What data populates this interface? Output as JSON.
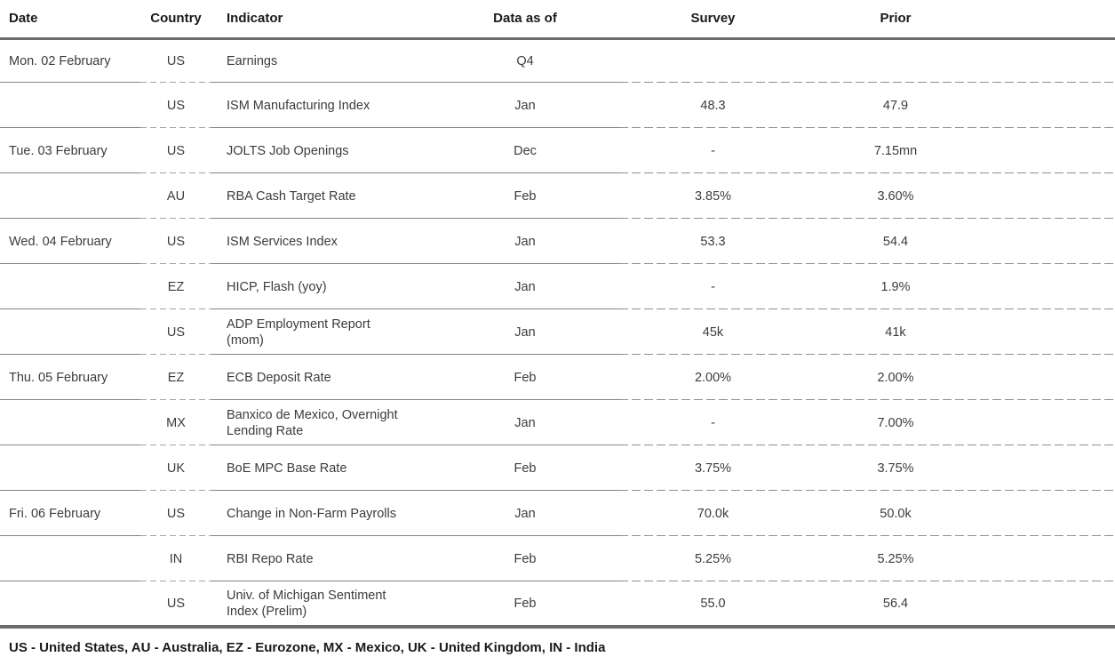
{
  "table": {
    "headers": {
      "date": "Date",
      "country": "Country",
      "indicator": "Indicator",
      "data_as_of": "Data as of",
      "survey": "Survey",
      "prior": "Prior"
    },
    "rows": [
      {
        "date": "Mon. 02 February",
        "country": "US",
        "indicator": "Earnings",
        "data_as_of": "Q4",
        "survey": "",
        "prior": ""
      },
      {
        "date": "",
        "country": "US",
        "indicator": "ISM Manufacturing Index",
        "data_as_of": "Jan",
        "survey": "48.3",
        "prior": "47.9"
      },
      {
        "date": "Tue. 03 February",
        "country": "US",
        "indicator": "JOLTS Job Openings",
        "data_as_of": "Dec",
        "survey": "-",
        "prior": "7.15mn"
      },
      {
        "date": "",
        "country": "AU",
        "indicator": "RBA Cash Target Rate",
        "data_as_of": "Feb",
        "survey": "3.85%",
        "prior": "3.60%"
      },
      {
        "date": "Wed. 04 February",
        "country": "US",
        "indicator": "ISM Services Index",
        "data_as_of": "Jan",
        "survey": "53.3",
        "prior": "54.4"
      },
      {
        "date": "",
        "country": "EZ",
        "indicator": "HICP, Flash (yoy)",
        "data_as_of": "Jan",
        "survey": "-",
        "prior": "1.9%"
      },
      {
        "date": "",
        "country": "US",
        "indicator": "ADP Employment Report\n(mom)",
        "data_as_of": "Jan",
        "survey": "45k",
        "prior": "41k"
      },
      {
        "date": "Thu. 05 February",
        "country": "EZ",
        "indicator": "ECB Deposit Rate",
        "data_as_of": "Feb",
        "survey": "2.00%",
        "prior": "2.00%"
      },
      {
        "date": "",
        "country": "MX",
        "indicator": "Banxico de Mexico, Overnight\nLending Rate",
        "data_as_of": "Jan",
        "survey": "-",
        "prior": "7.00%"
      },
      {
        "date": "",
        "country": "UK",
        "indicator": "BoE MPC Base Rate",
        "data_as_of": "Feb",
        "survey": "3.75%",
        "prior": "3.75%"
      },
      {
        "date": "Fri. 06 February",
        "country": "US",
        "indicator": "Change in Non-Farm Payrolls",
        "data_as_of": "Jan",
        "survey": "70.0k",
        "prior": "50.0k"
      },
      {
        "date": "",
        "country": "IN",
        "indicator": "RBI Repo Rate",
        "data_as_of": "Feb",
        "survey": "5.25%",
        "prior": "5.25%"
      },
      {
        "date": "",
        "country": "US",
        "indicator": "Univ. of Michigan Sentiment\nIndex (Prelim)",
        "data_as_of": "Feb",
        "survey": "55.0",
        "prior": "56.4"
      }
    ]
  },
  "footnote": "US - United States, AU - Australia, EZ - Eurozone, MX - Mexico, UK - United Kingdom, IN - India",
  "colors": {
    "thick": "#6b6b6b",
    "thin": "#838383",
    "dash": "#8f8f8f",
    "dash-light": "#a3a3a3",
    "text": "#3c3c3c",
    "heading": "#1a1a1a",
    "bg": "#ffffff"
  }
}
